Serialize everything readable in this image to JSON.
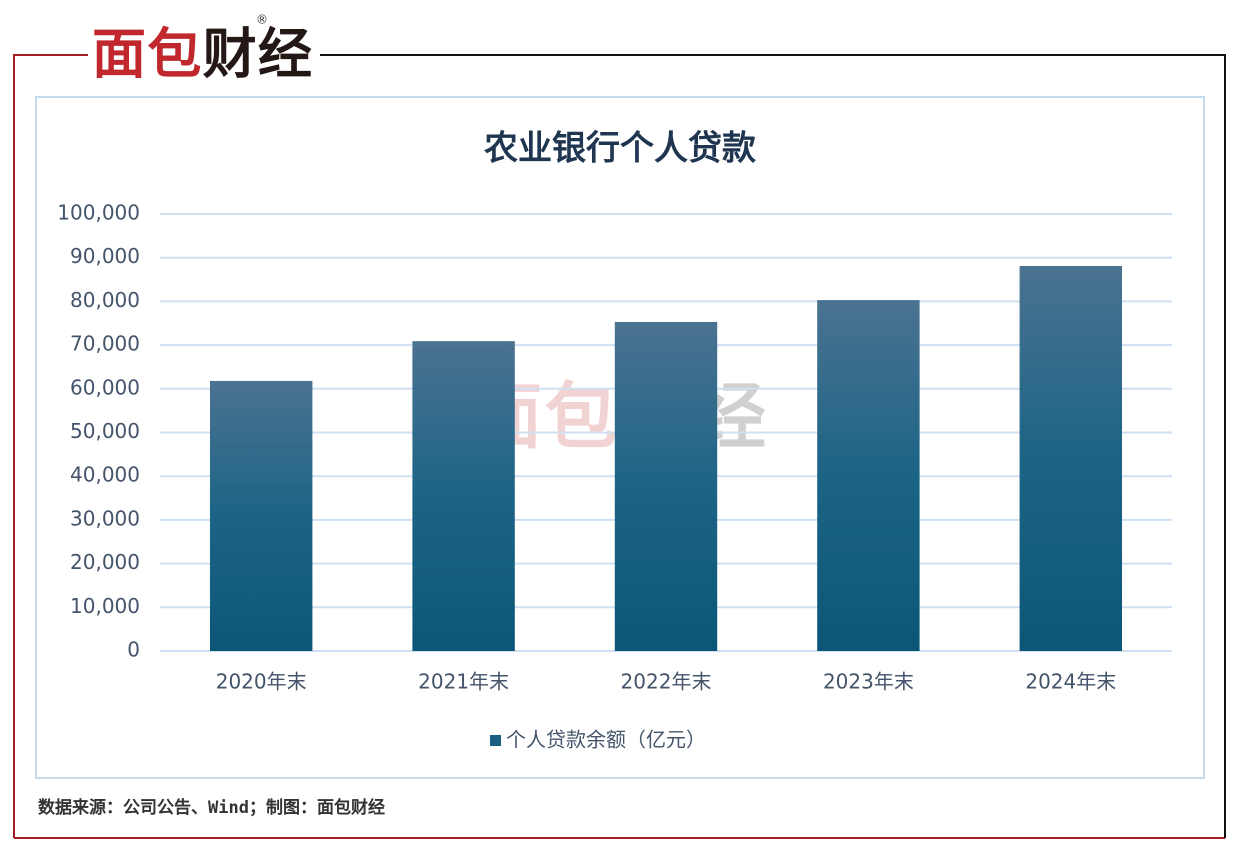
{
  "logo": "面包财经",
  "chart_data": {
    "type": "bar",
    "title": "农业银行个人贷款",
    "categories": [
      "2020年末",
      "2021年末",
      "2022年末",
      "2023年末",
      "2024年末"
    ],
    "series": [
      {
        "name": "个人贷款余额（亿元）",
        "color": "#1a5f82",
        "values": [
          61800,
          70900,
          75300,
          80300,
          88100
        ]
      }
    ],
    "ylim": [
      0,
      100000
    ],
    "yticks": [
      0,
      {
        "value": 10000,
        "label": "10,000"
      },
      {
        "value": 20000,
        "label": "20,000"
      },
      {
        "value": 30000,
        "label": "30,000"
      },
      {
        "value": 40000,
        "label": "40,000"
      },
      {
        "value": 50000,
        "label": "50,000"
      },
      {
        "value": 60000,
        "label": "60,000"
      },
      {
        "value": 70000,
        "label": "70,000"
      },
      {
        "value": 80000,
        "label": "80,000"
      },
      {
        "value": 90000,
        "label": "90,000"
      },
      {
        "value": 100000,
        "label": "100,000"
      }
    ],
    "grid": true,
    "legend": "bottom",
    "source": "数据来源：公司公告、Wind；制图：面包财经"
  }
}
